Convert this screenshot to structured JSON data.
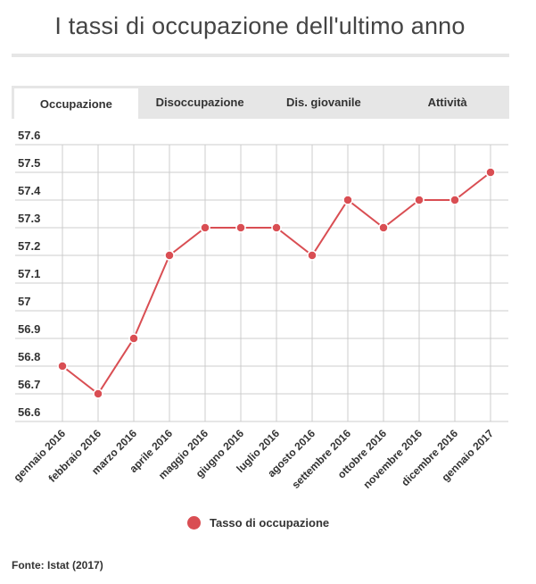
{
  "header": {
    "title": "I tassi di occupazione dell'ultimo anno"
  },
  "tabs": [
    {
      "label": "Occupazione",
      "active": true
    },
    {
      "label": "Disoccupazione",
      "active": false
    },
    {
      "label": "Dis. giovanile",
      "active": false
    },
    {
      "label": "Attività",
      "active": false
    }
  ],
  "colors": {
    "series": "#d94e53",
    "grid": "#cccccc",
    "tab_bar": "#e6e6e6"
  },
  "chart_data": {
    "type": "line",
    "title": "",
    "xlabel": "",
    "ylabel": "",
    "ylim": [
      56.6,
      57.6
    ],
    "yticks": [
      "56.6",
      "56.7",
      "56.8",
      "56.9",
      "57",
      "57.1",
      "57.2",
      "57.3",
      "57.4",
      "57.5",
      "57.6"
    ],
    "x": [
      "gennaio 2016",
      "febbraio 2016",
      "marzo 2016",
      "aprile 2016",
      "maggio 2016",
      "giugno 2016",
      "luglio 2016",
      "agosto 2016",
      "settembre 2016",
      "ottobre 2016",
      "novembre 2016",
      "dicembre 2016",
      "gennaio 2017"
    ],
    "series": [
      {
        "name": "Tasso di occupazione",
        "values": [
          56.8,
          56.7,
          56.9,
          57.2,
          57.3,
          57.3,
          57.3,
          57.2,
          57.4,
          57.3,
          57.4,
          57.4,
          57.5
        ]
      }
    ],
    "grid": true,
    "legend": "bottom"
  },
  "legend": {
    "label": "Tasso di occupazione"
  },
  "footer": {
    "source": "Fonte: Istat (2017)"
  }
}
